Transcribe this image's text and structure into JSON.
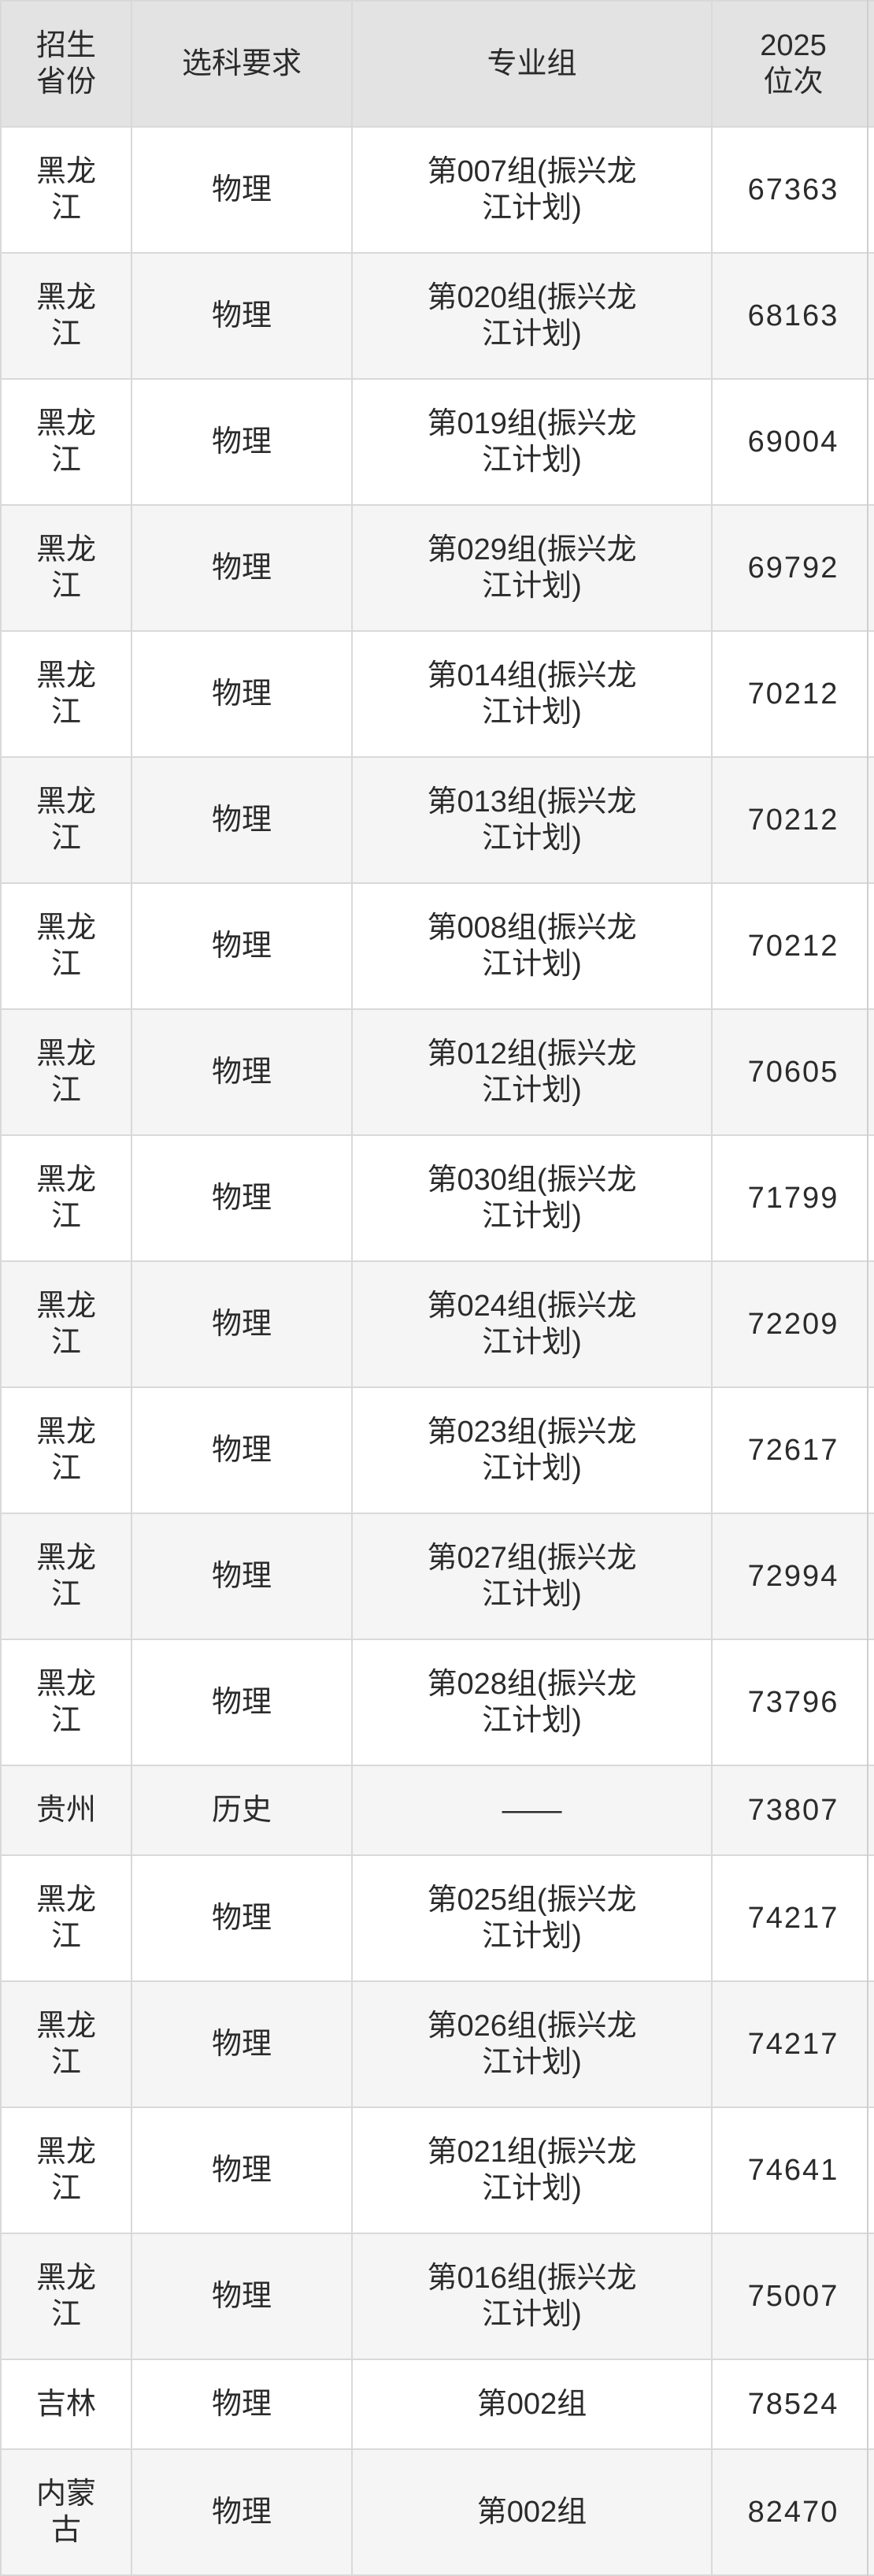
{
  "colors": {
    "header_bg": "#e3e3e3",
    "stripe_bg": "#f5f5f5",
    "row_bg": "#ffffff",
    "border": "#d9d9d9",
    "text": "#2b2b2b"
  },
  "table": {
    "columns": [
      {
        "key": "province",
        "label": "招生\n省份"
      },
      {
        "key": "subject",
        "label": "选科要求"
      },
      {
        "key": "group",
        "label": "专业组"
      },
      {
        "key": "rank",
        "label": "2025\n位次"
      }
    ],
    "rows": [
      {
        "province": "黑龙\n江",
        "subject": "物理",
        "group": "第007组(振兴龙\n江计划)",
        "rank": "67363"
      },
      {
        "province": "黑龙\n江",
        "subject": "物理",
        "group": "第020组(振兴龙\n江计划)",
        "rank": "68163"
      },
      {
        "province": "黑龙\n江",
        "subject": "物理",
        "group": "第019组(振兴龙\n江计划)",
        "rank": "69004"
      },
      {
        "province": "黑龙\n江",
        "subject": "物理",
        "group": "第029组(振兴龙\n江计划)",
        "rank": "69792"
      },
      {
        "province": "黑龙\n江",
        "subject": "物理",
        "group": "第014组(振兴龙\n江计划)",
        "rank": "70212"
      },
      {
        "province": "黑龙\n江",
        "subject": "物理",
        "group": "第013组(振兴龙\n江计划)",
        "rank": "70212"
      },
      {
        "province": "黑龙\n江",
        "subject": "物理",
        "group": "第008组(振兴龙\n江计划)",
        "rank": "70212"
      },
      {
        "province": "黑龙\n江",
        "subject": "物理",
        "group": "第012组(振兴龙\n江计划)",
        "rank": "70605"
      },
      {
        "province": "黑龙\n江",
        "subject": "物理",
        "group": "第030组(振兴龙\n江计划)",
        "rank": "71799"
      },
      {
        "province": "黑龙\n江",
        "subject": "物理",
        "group": "第024组(振兴龙\n江计划)",
        "rank": "72209"
      },
      {
        "province": "黑龙\n江",
        "subject": "物理",
        "group": "第023组(振兴龙\n江计划)",
        "rank": "72617"
      },
      {
        "province": "黑龙\n江",
        "subject": "物理",
        "group": "第027组(振兴龙\n江计划)",
        "rank": "72994"
      },
      {
        "province": "黑龙\n江",
        "subject": "物理",
        "group": "第028组(振兴龙\n江计划)",
        "rank": "73796"
      },
      {
        "province": "贵州",
        "subject": "历史",
        "group": "——",
        "rank": "73807"
      },
      {
        "province": "黑龙\n江",
        "subject": "物理",
        "group": "第025组(振兴龙\n江计划)",
        "rank": "74217"
      },
      {
        "province": "黑龙\n江",
        "subject": "物理",
        "group": "第026组(振兴龙\n江计划)",
        "rank": "74217"
      },
      {
        "province": "黑龙\n江",
        "subject": "物理",
        "group": "第021组(振兴龙\n江计划)",
        "rank": "74641"
      },
      {
        "province": "黑龙\n江",
        "subject": "物理",
        "group": "第016组(振兴龙\n江计划)",
        "rank": "75007"
      },
      {
        "province": "吉林",
        "subject": "物理",
        "group": "第002组",
        "rank": "78524"
      },
      {
        "province": "内蒙\n古",
        "subject": "物理",
        "group": "第002组",
        "rank": "82470"
      }
    ]
  }
}
